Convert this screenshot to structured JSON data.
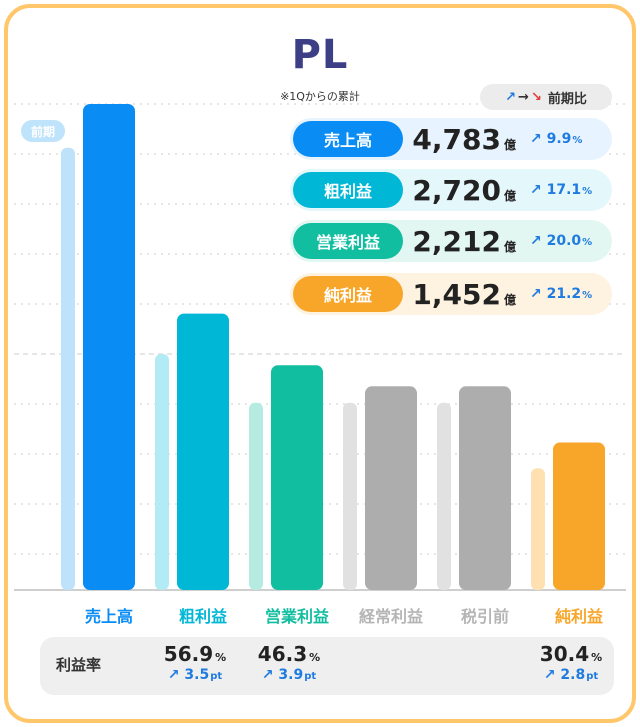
{
  "chart_data": {
    "type": "bar",
    "title": "PL",
    "subtitle": "※1Qからの累計",
    "unit": "億",
    "categories": [
      "売上高",
      "粗利益",
      "営業利益",
      "経常利益",
      "税引前",
      "純利益"
    ],
    "series": [
      {
        "name": "前期",
        "values": [
          4352,
          2323,
          1843,
          1843,
          1843,
          1198
        ]
      },
      {
        "values": [
          4783,
          2720,
          2212,
          2005,
          2005,
          1452
        ]
      }
    ],
    "ylim": [
      0,
      5000
    ],
    "grid": true,
    "category_colors": [
      "#0a8cf5",
      "#00b7d6",
      "#12bea0",
      "#adadad",
      "#adadad",
      "#f8a62a"
    ],
    "prev_colors": [
      "#bfe2fb",
      "#b2ebf5",
      "#b6ebe1",
      "#e1e1e1",
      "#e1e1e1",
      "#ffe0b0"
    ],
    "label_colors": [
      "#0a8cf5",
      "#00b7d6",
      "#12bea0",
      "#b5b5b5",
      "#b5b5b5",
      "#f8a62a"
    ]
  },
  "legend": {
    "up": "↗",
    "flat": "→",
    "down": "↘",
    "label": "前期比"
  },
  "prev_badge": "前期",
  "kpis": [
    {
      "label": "売上高",
      "value": "4,783",
      "unit": "億",
      "change": "9.9",
      "change_unit": "%",
      "color": "#0a8cf5",
      "bg": "#e7f3fe"
    },
    {
      "label": "粗利益",
      "value": "2,720",
      "unit": "億",
      "change": "17.1",
      "change_unit": "%",
      "color": "#00b7d6",
      "bg": "#e4f7fa"
    },
    {
      "label": "営業利益",
      "value": "2,212",
      "unit": "億",
      "change": "20.0",
      "change_unit": "%",
      "color": "#12bea0",
      "bg": "#e3f7f2"
    },
    {
      "label": "純利益",
      "value": "1,452",
      "unit": "億",
      "change": "21.2",
      "change_unit": "%",
      "color": "#f8a62a",
      "bg": "#fef2e0"
    }
  ],
  "margin": {
    "label": "利益率",
    "items": [
      {
        "category": "粗利益",
        "value": "56.9",
        "unit": "%",
        "change": "3.5",
        "change_unit": "pt"
      },
      {
        "category": "営業利益",
        "value": "46.3",
        "unit": "%",
        "change": "3.9",
        "change_unit": "pt"
      },
      {
        "category": "純利益",
        "value": "30.4",
        "unit": "%",
        "change": "2.8",
        "change_unit": "pt"
      }
    ]
  }
}
